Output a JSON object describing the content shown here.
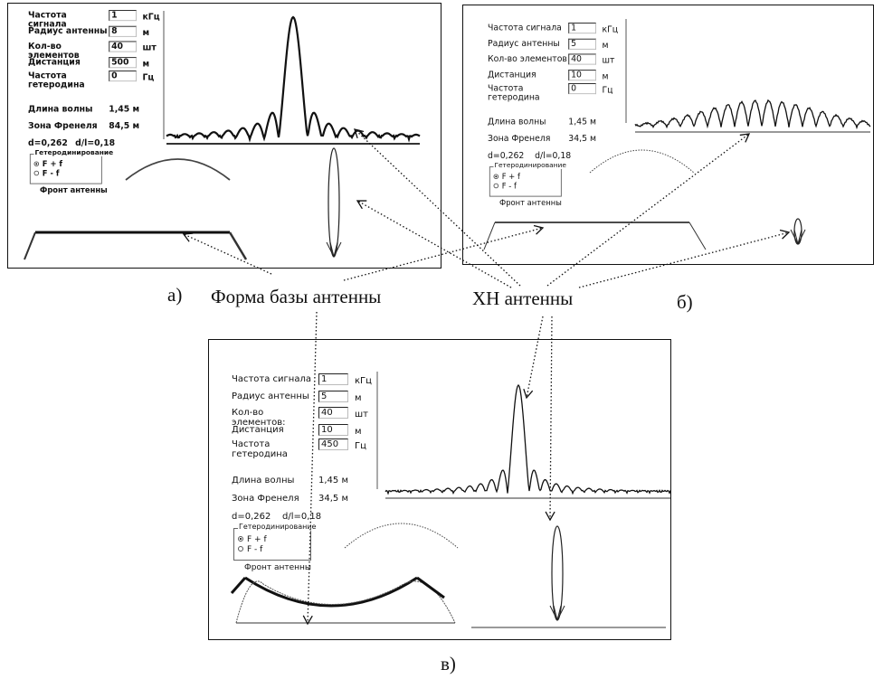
{
  "panels": [
    {
      "label": "а)",
      "fields": [
        {
          "label": "Частота сигнала",
          "value": "1",
          "unit": "кГц"
        },
        {
          "label": "Радиус антенны",
          "value": "8",
          "unit": "м"
        },
        {
          "label": "Кол-во элементов",
          "value": "40",
          "unit": "шт"
        },
        {
          "label": "Дистанция",
          "value": "500",
          "unit": "м"
        },
        {
          "label": "Частота гетеродина",
          "value": "0",
          "unit": "Гц"
        }
      ],
      "wavelength": {
        "label": "Длина волны",
        "value": "1,45 м"
      },
      "fresnel": {
        "label": "Зона Френеля",
        "value": "84,5 м"
      },
      "ratio": [
        "d=0,262",
        "d/l=0,18"
      ],
      "heterodyne": {
        "title": "Гетеродинирование",
        "options": [
          "F + f",
          "F - f"
        ]
      },
      "front_label": "Фронт антенны"
    },
    {
      "label": "б)",
      "fields": [
        {
          "label": "Частота сигнала",
          "value": "1",
          "unit": "кГц"
        },
        {
          "label": "Радиус антенны",
          "value": "5",
          "unit": "м"
        },
        {
          "label": "Кол-во элементов",
          "value": "40",
          "unit": "шт"
        },
        {
          "label": "Дистанция",
          "value": "10",
          "unit": "м"
        },
        {
          "label": "Частота гетеродина",
          "value": "0",
          "unit": "Гц"
        }
      ],
      "wavelength": {
        "label": "Длина волны",
        "value": "1,45 м"
      },
      "fresnel": {
        "label": "Зона Френеля",
        "value": "34,5 м"
      },
      "ratio": [
        "d=0,262",
        "d/l=0,18"
      ],
      "heterodyne": {
        "title": "Гетеродинирование",
        "options": [
          "F + f",
          "F - f"
        ]
      },
      "front_label": "Фронт антенны"
    },
    {
      "label": "в)",
      "fields": [
        {
          "label": "Частота сигнала",
          "value": "1",
          "unit": "кГц"
        },
        {
          "label": "Радиус антенны",
          "value": "5",
          "unit": "м"
        },
        {
          "label": "Кол-во элементов:",
          "value": "40",
          "unit": "шт"
        },
        {
          "label": "Дистанция",
          "value": "10",
          "unit": "м"
        },
        {
          "label": "Частота гетеродина",
          "value": "450",
          "unit": "Гц"
        }
      ],
      "wavelength": {
        "label": "Длина волны",
        "value": "1,45 м"
      },
      "fresnel": {
        "label": "Зона Френеля",
        "value": "34,5 м"
      },
      "ratio": [
        "d=0,262",
        "d/l=0,18"
      ],
      "heterodyne": {
        "title": "Гетеродинирование",
        "options": [
          "F + f",
          "F - f"
        ]
      },
      "front_label": "Фронт антенны"
    }
  ],
  "captions": {
    "base_shape": "Форма базы антенны",
    "pattern": "ХН антенны"
  }
}
